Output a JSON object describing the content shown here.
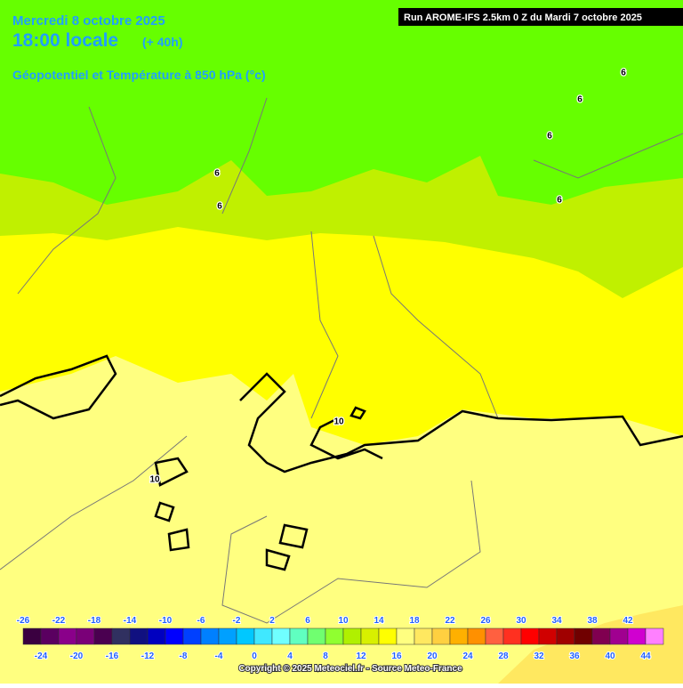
{
  "header": {
    "date": "Mercredi 8 octobre 2025",
    "time": "18:00 locale",
    "lead": "(+ 40h)",
    "field": "Géopotentiel et Température à 850 hPa (°c)",
    "run": "Run AROME-IFS 2.5km 0 Z du Mardi 7 octobre 2025"
  },
  "contour_labels": [
    6,
    6,
    6,
    6,
    6,
    6,
    10,
    10
  ],
  "colorbar": {
    "labels_top": [
      -26,
      -22,
      -18,
      -14,
      -10,
      -6,
      -2,
      2,
      6,
      10,
      14,
      18,
      22,
      26,
      30,
      34,
      38,
      42
    ],
    "labels_bottom": [
      -24,
      -20,
      -16,
      -12,
      -8,
      -4,
      0,
      4,
      8,
      12,
      16,
      20,
      24,
      28,
      32,
      36,
      40,
      44
    ],
    "colors": [
      "#3a0040",
      "#5a0060",
      "#8a008a",
      "#7a0078",
      "#4a0050",
      "#303060",
      "#101080",
      "#0000c0",
      "#0000ff",
      "#0040ff",
      "#0080ff",
      "#00a0ff",
      "#00c8ff",
      "#40e8ff",
      "#70ffff",
      "#60ffc0",
      "#70ff70",
      "#90ff30",
      "#b0f000",
      "#d8f000",
      "#ffff00",
      "#ffff80",
      "#ffe860",
      "#ffd040",
      "#ffb000",
      "#ff9000",
      "#ff6040",
      "#ff3020",
      "#ff0000",
      "#d00000",
      "#a00000",
      "#700000",
      "#800050",
      "#a00090",
      "#d000d0",
      "#ff80ff"
    ]
  },
  "footer": {
    "copyright": "Copyright © 2025 Meteociel.fr - Source Meteo-France"
  }
}
